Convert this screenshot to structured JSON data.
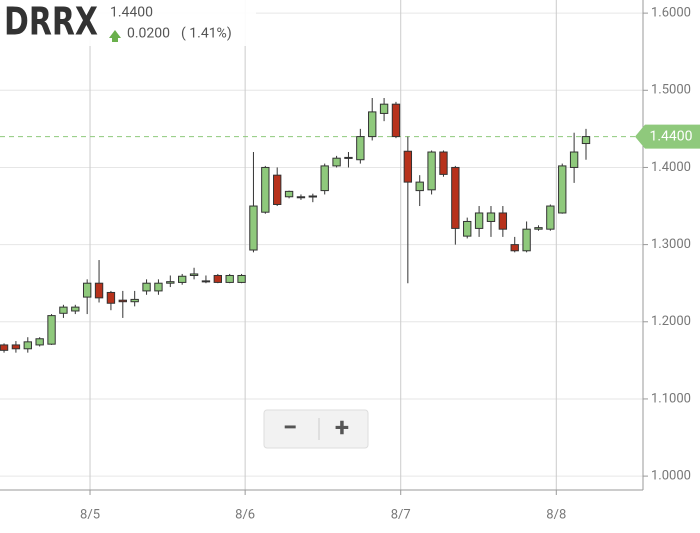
{
  "header": {
    "symbol": "DRRX",
    "price": "1.4400",
    "change": "0.0200",
    "change_pct": "( 1.41%)"
  },
  "controls": {
    "zoom_out": "−",
    "zoom_in": "+"
  },
  "chart_data": {
    "type": "candlestick",
    "x": [
      0,
      1,
      2,
      3,
      4,
      5,
      6,
      7,
      8,
      9,
      10,
      11,
      12,
      13,
      14,
      15,
      16,
      17,
      18,
      19,
      20,
      21,
      22,
      23,
      24,
      25,
      26,
      27,
      28,
      29,
      30,
      31,
      32,
      33,
      34,
      35,
      36,
      37,
      38,
      39,
      40,
      41,
      42,
      43,
      44,
      45,
      46,
      47,
      48,
      49
    ],
    "open": [
      1.17,
      1.17,
      1.165,
      1.17,
      1.171,
      1.211,
      1.214,
      1.232,
      1.25,
      1.238,
      1.228,
      1.226,
      1.24,
      1.24,
      1.25,
      1.251,
      1.26,
      1.253,
      1.26,
      1.251,
      1.251,
      1.293,
      1.342,
      1.39,
      1.362,
      1.362,
      1.363,
      1.37,
      1.402,
      1.412,
      1.41,
      1.44,
      1.47,
      1.482,
      1.421,
      1.37,
      1.371,
      1.42,
      1.4,
      1.311,
      1.321,
      1.33,
      1.341,
      1.3,
      1.292,
      1.32,
      1.32,
      1.341,
      1.4,
      1.431
    ],
    "close": [
      1.163,
      1.165,
      1.174,
      1.178,
      1.208,
      1.219,
      1.219,
      1.25,
      1.231,
      1.224,
      1.226,
      1.229,
      1.25,
      1.25,
      1.252,
      1.259,
      1.262,
      1.252,
      1.251,
      1.26,
      1.26,
      1.35,
      1.4,
      1.352,
      1.369,
      1.361,
      1.362,
      1.402,
      1.412,
      1.413,
      1.44,
      1.472,
      1.482,
      1.44,
      1.381,
      1.381,
      1.42,
      1.391,
      1.321,
      1.33,
      1.341,
      1.341,
      1.32,
      1.292,
      1.32,
      1.322,
      1.35,
      1.402,
      1.42,
      1.44
    ],
    "high": [
      1.172,
      1.175,
      1.18,
      1.18,
      1.21,
      1.222,
      1.222,
      1.255,
      1.28,
      1.24,
      1.24,
      1.24,
      1.255,
      1.255,
      1.26,
      1.262,
      1.27,
      1.26,
      1.262,
      1.262,
      1.262,
      1.42,
      1.402,
      1.4,
      1.37,
      1.365,
      1.366,
      1.405,
      1.415,
      1.42,
      1.45,
      1.49,
      1.49,
      1.485,
      1.44,
      1.39,
      1.422,
      1.422,
      1.402,
      1.335,
      1.35,
      1.35,
      1.35,
      1.31,
      1.33,
      1.325,
      1.352,
      1.405,
      1.445,
      1.45
    ],
    "low": [
      1.16,
      1.16,
      1.16,
      1.168,
      1.17,
      1.205,
      1.21,
      1.21,
      1.225,
      1.215,
      1.205,
      1.22,
      1.235,
      1.235,
      1.245,
      1.248,
      1.255,
      1.25,
      1.25,
      1.25,
      1.25,
      1.29,
      1.34,
      1.35,
      1.36,
      1.358,
      1.355,
      1.365,
      1.4,
      1.4,
      1.405,
      1.435,
      1.46,
      1.438,
      1.25,
      1.35,
      1.365,
      1.388,
      1.3,
      1.308,
      1.31,
      1.31,
      1.31,
      1.29,
      1.29,
      1.318,
      1.318,
      1.34,
      1.38,
      1.41
    ],
    "up_color": "#8fc97c",
    "down_color": "#b7321c",
    "xlim": [
      -0.34,
      53.8
    ],
    "xticks": [
      {
        "value": 7.24,
        "label": "8/5"
      },
      {
        "value": 20.3,
        "label": "8/6"
      },
      {
        "value": 33.4,
        "label": "8/7"
      },
      {
        "value": 46.5,
        "label": "8/8"
      }
    ],
    "ylim": [
      0.982,
      1.617
    ],
    "yticks": [
      {
        "value": 1.0,
        "label": "1.0000"
      },
      {
        "value": 1.1,
        "label": "1.1000"
      },
      {
        "value": 1.2,
        "label": "1.2000"
      },
      {
        "value": 1.3,
        "label": "1.3000"
      },
      {
        "value": 1.4,
        "label": "1.4000"
      },
      {
        "value": 1.5,
        "label": "1.5000"
      },
      {
        "value": 1.6,
        "label": "1.6000"
      }
    ],
    "last_price": {
      "value": 1.44,
      "label": "1.4400"
    },
    "grid": true
  }
}
